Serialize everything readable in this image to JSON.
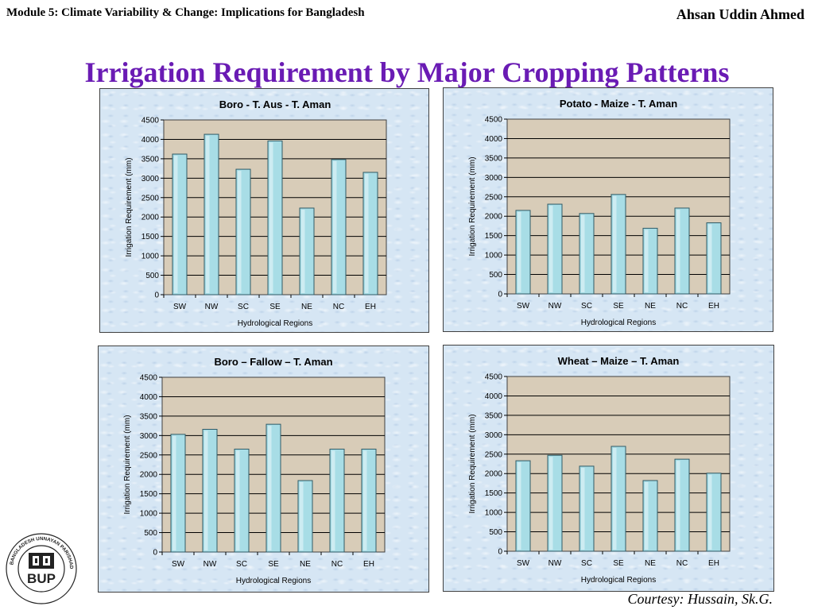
{
  "header": {
    "module": "Module 5: Climate Variability & Change: Implications for Bangladesh",
    "author": "Ahsan Uddin Ahmed"
  },
  "title": "Irrigation Requirement by Major Cropping Patterns",
  "courtesy": "Courtesy: Hussain, Sk.G.",
  "logo": {
    "text": "BUP",
    "ring_text": "BANGLADESH UNNAYAN PARISHAD",
    "ring_text_bn": "বাংলাদেশ উন্নয়ন পরিষদ"
  },
  "colors": {
    "title": "#6a1bb4",
    "plot_bg": "#d8ccb8",
    "bar": "#a8dde6",
    "bar_border": "#2f5a66"
  },
  "chart_data": [
    {
      "type": "bar",
      "title": "Boro - T. Aus - T. Aman",
      "xlabel": "Hydrological Regions",
      "ylabel": "Irrigation Requirement (mm)",
      "categories": [
        "SW",
        "NW",
        "SC",
        "SE",
        "NE",
        "NC",
        "EH"
      ],
      "values": [
        3620,
        4130,
        3230,
        3960,
        2230,
        3480,
        3150
      ],
      "ylim": [
        0,
        4500
      ],
      "yticks": [
        0,
        500,
        1000,
        1500,
        2000,
        2500,
        3000,
        3500,
        4000,
        4500
      ],
      "grid": true
    },
    {
      "type": "bar",
      "title": "Potato - Maize - T. Aman",
      "xlabel": "Hydrological Regions",
      "ylabel": "Irrigation Requirement (mm)",
      "categories": [
        "SW",
        "NW",
        "SC",
        "SE",
        "NE",
        "NC",
        "EH"
      ],
      "values": [
        2150,
        2310,
        2070,
        2560,
        1690,
        2210,
        1830
      ],
      "ylim": [
        0,
        4500
      ],
      "yticks": [
        0,
        500,
        1000,
        1500,
        2000,
        2500,
        3000,
        3500,
        4000,
        4500
      ],
      "grid": true
    },
    {
      "type": "bar",
      "title": "Boro – Fallow – T. Aman",
      "xlabel": "Hydrological Regions",
      "ylabel": "Irrigation Requirement (mm)",
      "categories": [
        "SW",
        "NW",
        "SC",
        "SE",
        "NE",
        "NC",
        "EH"
      ],
      "values": [
        3030,
        3160,
        2650,
        3290,
        1840,
        2650,
        2650
      ],
      "ylim": [
        0,
        4500
      ],
      "yticks": [
        0,
        500,
        1000,
        1500,
        2000,
        2500,
        3000,
        3500,
        4000,
        4500
      ],
      "grid": true
    },
    {
      "type": "bar",
      "title": "Wheat – Maize – T. Aman",
      "xlabel": "Hydrological Regions",
      "ylabel": "Irrigation Requirement (mm)",
      "categories": [
        "SW",
        "NW",
        "SC",
        "SE",
        "NE",
        "NC",
        "EH"
      ],
      "values": [
        2330,
        2470,
        2190,
        2700,
        1820,
        2370,
        2010
      ],
      "ylim": [
        0,
        4500
      ],
      "yticks": [
        0,
        500,
        1000,
        1500,
        2000,
        2500,
        3000,
        3500,
        4000,
        4500
      ],
      "grid": true
    }
  ]
}
